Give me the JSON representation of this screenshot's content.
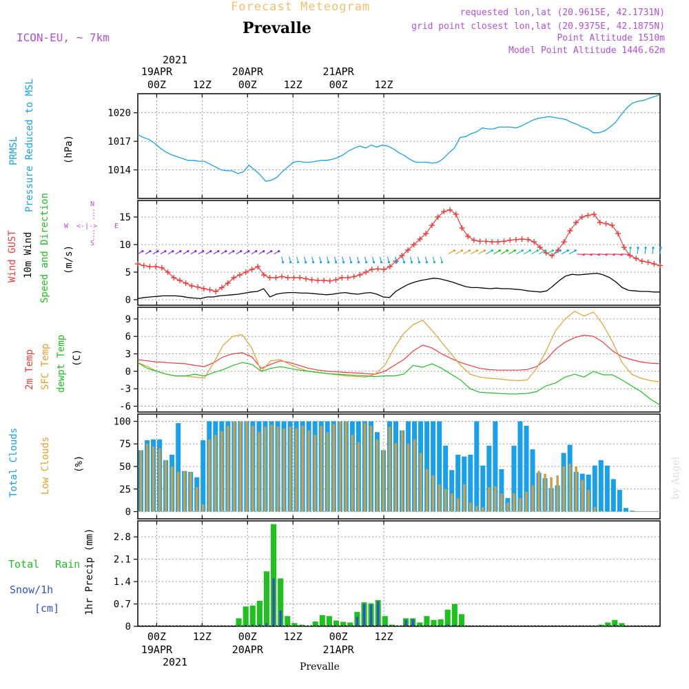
{
  "header": {
    "subtitle": "Forecast Meteogram",
    "station": "Prevalle",
    "model": "ICON-EU, ~ 7km",
    "requested": "requested lon,lat (20.9615E, 42.1731N)",
    "gridpoint": "grid point closest lon,lat (20.9375E, 42.1875N)",
    "point_alt": "Point Altitude 1510m",
    "model_alt": "Model Point Altitude 1446.62m"
  },
  "top_axis": {
    "year": "2021",
    "ticks": [
      {
        "date": "19APR",
        "time": "00Z"
      },
      {
        "date": "",
        "time": "12Z"
      },
      {
        "date": "20APR",
        "time": "00Z"
      },
      {
        "date": "",
        "time": "12Z"
      },
      {
        "date": "21APR",
        "time": "00Z"
      },
      {
        "date": "",
        "time": "12Z"
      }
    ]
  },
  "bottom_axis": {
    "times": [
      "00Z",
      "12Z",
      "00Z",
      "12Z",
      "00Z",
      "12Z"
    ],
    "dates": [
      "19APR",
      "",
      "20APR",
      "",
      "21APR",
      ""
    ],
    "year": "2021",
    "station": "Prevalle"
  },
  "watermark": "by Angel",
  "labels": {
    "p1": {
      "a": "PRMSL",
      "b": "Pressure Reduced to MSL",
      "unit": "(hPa)"
    },
    "p2": {
      "a": "Wind GUST",
      "b": "10m Wind",
      "c": "Speed and Direction",
      "unit": "(m/s)",
      "compass_n": "N",
      "compass_s": "S",
      "compass_w": "W",
      "compass_e": "E",
      "compass_mid": "<-|->"
    },
    "p3": {
      "a": "2m Temp",
      "b": "SFC Temp",
      "c": "dewpt Temp",
      "unit": "(C)"
    },
    "p4": {
      "a": "Total Clouds",
      "b": "Low Clouds",
      "unit": "(%)"
    },
    "p5": {
      "a": "Total Rain",
      "b": "Snow/1h",
      "c": "[cm]",
      "unit": "1hr Precip (mm)"
    }
  },
  "colors": {
    "pressure": "#1ba0e8",
    "gust": "#ee3b3b",
    "wind": "#000000",
    "t2m": "#ee3b3b",
    "tsfc": "#e0a030",
    "dewpt": "#20c020",
    "total_cloud": "#1ba0e8",
    "low_cloud": "#c8a050",
    "rain": "#20c020",
    "snow": "#3050d0",
    "axis_text": "#000000",
    "magenta": "#b050d8",
    "title_orange": "#f0c070"
  },
  "chart_data": [
    {
      "type": "line",
      "title": "PRMSL Pressure Reduced to MSL",
      "ylabel": "(hPa)",
      "ylim": [
        1011,
        1022
      ],
      "yticks": [
        1014,
        1017,
        1020
      ],
      "x_hours": [
        -5,
        -4,
        -3,
        -2,
        -1,
        0,
        1,
        2,
        3,
        4,
        5,
        6,
        7,
        8,
        9,
        10,
        11,
        12,
        13,
        14,
        15,
        16,
        17,
        18,
        19,
        20,
        21,
        22,
        23,
        24,
        25,
        26,
        27,
        28,
        29,
        30,
        31,
        32,
        33,
        34,
        35,
        36,
        37,
        38,
        39,
        40,
        41,
        42,
        43,
        44,
        45,
        46,
        47,
        48,
        49,
        50,
        51,
        52,
        53,
        54,
        55,
        56,
        57,
        58,
        59,
        60,
        61,
        62,
        63,
        64,
        65,
        66,
        67,
        68,
        69,
        70,
        71,
        72,
        73,
        74,
        75,
        76,
        77,
        78,
        79,
        80,
        81,
        82,
        83,
        84,
        85,
        86,
        87,
        88,
        89,
        90,
        91,
        92,
        93,
        94,
        95,
        96,
        97,
        98,
        99,
        100,
        101,
        102,
        103,
        104,
        105,
        106,
        107,
        108,
        109,
        110,
        111,
        112,
        113,
        114,
        115,
        116,
        117,
        118,
        119,
        120,
        121,
        122,
        123,
        124,
        125,
        126,
        127,
        128,
        129,
        130,
        131,
        132,
        133
      ],
      "series": [
        {
          "name": "PRMSL",
          "values": [
            1017.7,
            1017.4,
            1017.2,
            1016.8,
            1016.3,
            1015.9,
            1015.6,
            1015.4,
            1015.2,
            1015.0,
            1015.0,
            1014.9,
            1014.9,
            1014.6,
            1014.3,
            1014.0,
            1013.9,
            1013.9,
            1013.6,
            1013.8,
            1014.5,
            1014.0,
            1013.5,
            1012.8,
            1012.9,
            1013.2,
            1013.8,
            1014.3,
            1014.8,
            1014.9,
            1014.8,
            1014.8,
            1014.9,
            1015.0,
            1015.0,
            1015.1,
            1015.3,
            1015.6,
            1016.0,
            1016.3,
            1016.5,
            1016.3,
            1016.6,
            1016.4,
            1016.6,
            1016.5,
            1016.2,
            1015.8,
            1015.5,
            1015.1,
            1014.8,
            1014.8,
            1014.8,
            1014.7,
            1014.8,
            1015.2,
            1015.8,
            1016.3,
            1017.4,
            1017.5,
            1017.8,
            1018.0,
            1018.4,
            1018.3,
            1018.3,
            1018.5,
            1018.5,
            1018.5,
            1018.4,
            1018.6,
            1018.9,
            1019.2,
            1019.4,
            1019.5,
            1019.6,
            1019.5,
            1019.4,
            1019.3,
            1019.0,
            1018.8,
            1018.5,
            1018.3,
            1017.9,
            1017.9,
            1018.1,
            1018.5,
            1019.0,
            1019.8,
            1020.5,
            1021.0,
            1021.2,
            1021.3,
            1021.5,
            1021.7,
            1021.9
          ]
        }
      ]
    },
    {
      "type": "line",
      "title": "Wind GUST / 10m Wind Speed and Direction",
      "ylabel": "(m/s)",
      "ylim": [
        -1,
        18
      ],
      "yticks": [
        0,
        5,
        10,
        15
      ],
      "series": [
        {
          "name": "Wind GUST",
          "values": [
            6.5,
            6.2,
            6.0,
            6.0,
            5.8,
            5.0,
            4.0,
            3.5,
            3.0,
            2.5,
            2.3,
            2.0,
            1.8,
            1.5,
            2.2,
            3.0,
            4.0,
            4.5,
            5.0,
            5.5,
            6.0,
            4.5,
            4.0,
            4.0,
            4.2,
            4.0,
            4.0,
            4.0,
            3.8,
            3.6,
            3.5,
            3.5,
            3.4,
            3.6,
            4.0,
            4.0,
            4.2,
            4.5,
            5.0,
            5.5,
            5.6,
            5.5,
            6.0,
            7.0,
            8.0,
            9.0,
            10.0,
            11.0,
            12.0,
            13.5,
            15.0,
            16.0,
            16.3,
            15.5,
            13.0,
            11.5,
            10.8,
            10.6,
            10.6,
            10.5,
            10.5,
            10.6,
            10.8,
            10.9,
            11.0,
            10.9,
            10.5,
            9.5,
            8.5,
            8.0,
            9.0,
            10.5,
            12.5,
            14.0,
            15.0,
            15.3,
            15.5,
            14.0,
            13.8,
            13.5,
            12.0,
            9.5,
            8.0,
            7.5,
            7.0,
            6.8,
            6.5,
            6.2
          ]
        },
        {
          "name": "10m Wind",
          "values": [
            0.2,
            0.4,
            0.5,
            0.6,
            0.7,
            0.7,
            0.7,
            0.6,
            0.4,
            0.3,
            0.2,
            0.5,
            0.5,
            0.7,
            0.8,
            0.9,
            1.0,
            1.2,
            1.4,
            1.5,
            2.0,
            0.5,
            1.0,
            1.2,
            1.3,
            1.3,
            1.2,
            1.2,
            1.1,
            1.0,
            0.9,
            1.0,
            1.2,
            1.3,
            1.1,
            1.0,
            1.2,
            1.3,
            1.0,
            0.5,
            0.4,
            1.5,
            2.2,
            2.8,
            3.2,
            3.5,
            3.7,
            3.9,
            3.8,
            3.5,
            3.2,
            2.8,
            2.4,
            2.2,
            2.2,
            2.1,
            2.0,
            2.1,
            2.0,
            2.0,
            1.9,
            1.8,
            1.6,
            1.5,
            1.4,
            1.6,
            2.5,
            3.5,
            4.3,
            4.6,
            4.5,
            4.6,
            4.7,
            4.8,
            4.5,
            4.0,
            3.2,
            2.2,
            1.7,
            1.6,
            1.5,
            1.5,
            1.4,
            1.4
          ]
        }
      ]
    },
    {
      "type": "line",
      "title": "2m Temp / SFC Temp / dewpt Temp",
      "ylabel": "(C)",
      "ylim": [
        -7,
        11
      ],
      "yticks": [
        -6,
        -3,
        0,
        3,
        6,
        9
      ],
      "series": [
        {
          "name": "2m Temp",
          "values": [
            2.0,
            1.8,
            1.6,
            1.5,
            1.4,
            1.3,
            1.0,
            0.8,
            1.5,
            2.5,
            3.0,
            3.2,
            2.5,
            0.5,
            1.2,
            1.8,
            1.5,
            1.0,
            0.5,
            0.2,
            0.0,
            -0.1,
            -0.2,
            -0.3,
            -0.4,
            -0.5,
            0.0,
            1.0,
            2.0,
            3.5,
            4.5,
            4.0,
            3.0,
            2.2,
            1.5,
            1.0,
            0.5,
            0.3,
            0.2,
            0.2,
            0.2,
            0.3,
            0.8,
            2.0,
            3.8,
            5.0,
            5.8,
            6.2,
            6.0,
            5.0,
            3.5,
            2.5,
            2.0,
            1.6,
            1.4,
            1.3
          ]
        },
        {
          "name": "SFC Temp",
          "values": [
            1.5,
            0.8,
            0.0,
            -0.5,
            -0.8,
            -0.8,
            -1.0,
            -1.2,
            1.5,
            4.5,
            6.0,
            6.3,
            4.0,
            0.0,
            1.8,
            2.0,
            1.2,
            0.5,
            0.0,
            -0.2,
            -0.4,
            -0.6,
            -0.8,
            -0.9,
            -1.0,
            -0.5,
            1.0,
            4.0,
            6.5,
            8.0,
            8.8,
            7.0,
            5.0,
            3.0,
            1.0,
            -0.5,
            -1.0,
            -1.2,
            -1.3,
            -1.5,
            -1.6,
            -1.5,
            0.5,
            3.5,
            7.0,
            9.0,
            10.3,
            9.5,
            10.2,
            8.0,
            5.0,
            1.5,
            -0.5,
            -1.2,
            -1.6,
            -1.8
          ]
        },
        {
          "name": "dewpt Temp",
          "values": [
            1.5,
            0.5,
            0.0,
            -0.5,
            -0.8,
            -0.8,
            -0.5,
            -0.8,
            -0.2,
            0.3,
            1.0,
            1.5,
            1.2,
            0.0,
            0.5,
            0.8,
            0.5,
            0.2,
            0.0,
            -0.2,
            -0.4,
            -0.5,
            -0.6,
            -0.7,
            -0.8,
            -0.9,
            -0.8,
            -0.8,
            -0.5,
            1.0,
            0.7,
            1.3,
            0.5,
            -0.5,
            -1.5,
            -3.0,
            -3.6,
            -3.7,
            -3.8,
            -3.9,
            -3.9,
            -3.8,
            -3.5,
            -2.5,
            -2.0,
            -1.0,
            -0.5,
            -1.0,
            0.0,
            -0.6,
            -0.6,
            -1.5,
            -2.5,
            -3.5,
            -4.8,
            -5.8
          ]
        }
      ]
    },
    {
      "type": "bar",
      "title": "Total Clouds / Low Clouds",
      "ylabel": "(%)",
      "ylim": [
        -8,
        108
      ],
      "yticks": [
        0,
        25,
        50,
        75,
        100
      ],
      "series": [
        {
          "name": "Total Clouds",
          "values": [
            68,
            79,
            80,
            80,
            57,
            63,
            98,
            45,
            44,
            38,
            79,
            100,
            100,
            100,
            100,
            100,
            100,
            100,
            100,
            100,
            100,
            100,
            100,
            100,
            100,
            100,
            100,
            100,
            100,
            100,
            100,
            100,
            100,
            100,
            100,
            100,
            100,
            100,
            88,
            68,
            100,
            100,
            90,
            100,
            100,
            100,
            100,
            100,
            100,
            73,
            46,
            63,
            61,
            63,
            100,
            51,
            73,
            100,
            47,
            15,
            73,
            100,
            95,
            69,
            43,
            37,
            26,
            29,
            65,
            74,
            44,
            42,
            41,
            51,
            57,
            51,
            36,
            24,
            4,
            1,
            0,
            0,
            0,
            0
          ]
        },
        {
          "name": "Low Clouds",
          "values": [
            68,
            75,
            72,
            70,
            57,
            50,
            44,
            45,
            44,
            27,
            8,
            80,
            85,
            89,
            95,
            100,
            100,
            100,
            95,
            88,
            94,
            96,
            94,
            92,
            94,
            92,
            95,
            90,
            85,
            95,
            88,
            97,
            100,
            100,
            85,
            77,
            98,
            95,
            80,
            68,
            94,
            76,
            90,
            75,
            80,
            65,
            47,
            40,
            30,
            25,
            20,
            15,
            30,
            10,
            6,
            5,
            27,
            28,
            20,
            10,
            20,
            15,
            22,
            29,
            45,
            42,
            38,
            40,
            50,
            53,
            50,
            35,
            24,
            5,
            1,
            0,
            0,
            0,
            0,
            0,
            0,
            0,
            0,
            0
          ]
        }
      ]
    },
    {
      "type": "bar",
      "title": "Total Rain / Snow 1h",
      "ylabel": "1hr Precip (mm)",
      "ylim": [
        0,
        3.3
      ],
      "yticks": [
        0,
        0.7,
        1.4,
        2.1,
        2.8
      ],
      "series": [
        {
          "name": "Total Rain",
          "values": [
            0,
            0,
            0,
            0,
            0,
            0,
            0,
            0,
            0,
            0,
            0,
            0,
            0,
            0,
            0.25,
            0.62,
            0.65,
            0.8,
            1.72,
            3.2,
            1.5,
            0.32,
            0.1,
            0.05,
            0.02,
            0.15,
            0.35,
            0.32,
            0.18,
            0.14,
            0.12,
            0.45,
            0.75,
            0.72,
            0.82,
            0.32,
            0.05,
            0.02,
            0.25,
            0.25,
            0.12,
            0.32,
            0.2,
            0.22,
            0.52,
            0.7,
            0.38,
            0,
            0,
            0,
            0,
            0,
            0,
            0,
            0,
            0,
            0,
            0,
            0,
            0,
            0,
            0,
            0,
            0,
            0,
            0,
            0.05,
            0.12,
            0.2,
            0.1,
            0,
            0,
            0,
            0,
            0
          ]
        },
        {
          "name": "Snow/1h",
          "values": [
            0,
            0,
            0,
            0,
            0,
            0,
            0,
            0,
            0,
            0,
            0,
            0,
            0,
            0,
            0.02,
            0.04,
            0.05,
            0.06,
            0.1,
            1.5,
            0.5,
            0.02,
            0.01,
            0,
            0,
            0,
            0.02,
            0.02,
            0.01,
            0.01,
            0.01,
            0.3,
            0.7,
            0.68,
            0.78,
            0.05,
            0.01,
            0,
            0.2,
            0.22,
            0,
            0.02,
            0.01,
            0.02,
            0.05,
            0.05,
            0.01,
            0,
            0,
            0,
            0,
            0,
            0,
            0,
            0,
            0,
            0,
            0,
            0,
            0,
            0,
            0,
            0,
            0,
            0,
            0,
            0.01,
            0.02,
            0.05,
            0.01,
            0,
            0,
            0,
            0,
            0
          ]
        }
      ]
    }
  ]
}
